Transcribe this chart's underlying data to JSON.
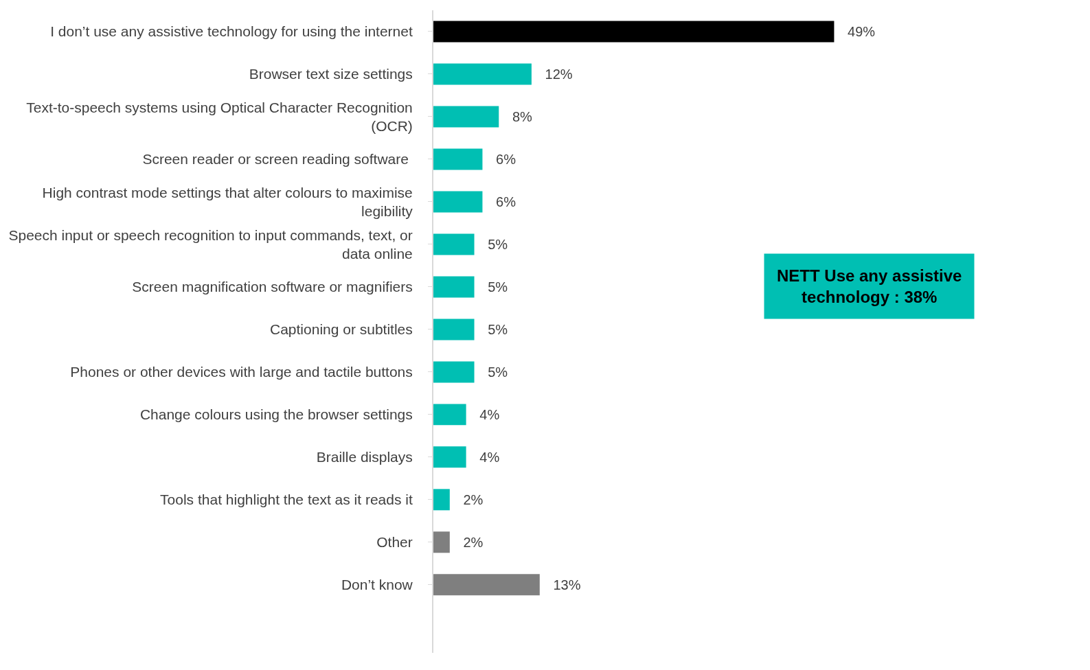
{
  "chart_data": {
    "type": "bar",
    "orientation": "horizontal",
    "categories": [
      "I don’t use any assistive technology for using the internet",
      "Browser text size settings",
      "Text-to-speech systems using Optical Character Recognition (OCR)",
      "Screen reader or screen reading software ",
      "High contrast mode settings that alter colours to maximise legibility",
      "Speech input or speech recognition to input commands, text, or data online",
      "Screen magnification software or magnifiers",
      "Captioning or subtitles",
      "Phones or other devices with large and tactile buttons",
      "Change colours using the browser settings",
      "Braille displays",
      "Tools that highlight the text as it reads it",
      "Other",
      "Don’t know"
    ],
    "values": [
      49,
      12,
      8,
      6,
      6,
      5,
      5,
      5,
      5,
      4,
      4,
      2,
      2,
      13
    ],
    "value_labels": [
      "49%",
      "12%",
      "8%",
      "6%",
      "6%",
      "5%",
      "5%",
      "5%",
      "5%",
      "4%",
      "4%",
      "2%",
      "2%",
      "13%"
    ],
    "colors": [
      "#000000",
      "#00bfb3",
      "#00bfb3",
      "#00bfb3",
      "#00bfb3",
      "#00bfb3",
      "#00bfb3",
      "#00bfb3",
      "#00bfb3",
      "#00bfb3",
      "#00bfb3",
      "#00bfb3",
      "#7f7f7f",
      "#7f7f7f"
    ],
    "annotations": [
      "NETT Use any assistive technology : 38%"
    ],
    "legend": false
  }
}
